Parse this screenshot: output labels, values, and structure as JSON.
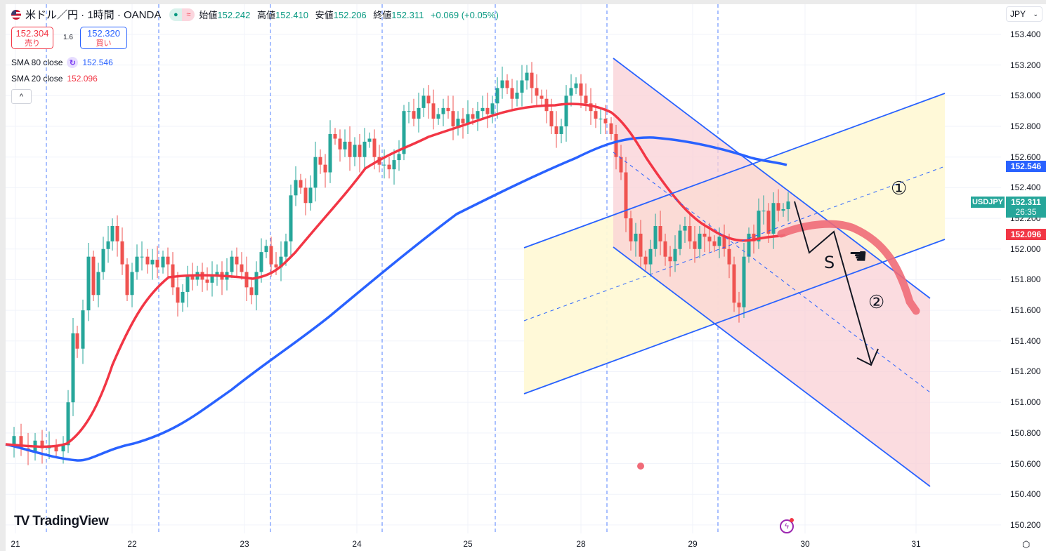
{
  "header": {
    "symbol_title": "米ドル／円 · 1時間 · OANDA",
    "status_icons": [
      "market-open-dot-icon",
      "delayed-wave-icon"
    ],
    "ohlc": {
      "open_label": "始値",
      "open": "152.242",
      "high_label": "高値",
      "high": "152.410",
      "low_label": "安値",
      "low": "152.206",
      "close_label": "終値",
      "close": "152.311",
      "change": "+0.069 (+0.05%)"
    }
  },
  "trade": {
    "sell_price": "152.304",
    "sell_label": "売り",
    "spread": "1.6",
    "buy_price": "152.320",
    "buy_label": "買い"
  },
  "indicators": [
    {
      "name": "SMA 80 close",
      "value": "152.546",
      "color": "#2962ff"
    },
    {
      "name": "SMA 20 close",
      "value": "152.096",
      "color": "#f23645"
    }
  ],
  "collapse_icon": "^",
  "currency": "JPY",
  "price_axis": [
    "153.400",
    "153.200",
    "153.000",
    "152.800",
    "152.600",
    "152.400",
    "152.200",
    "152.000",
    "151.800",
    "151.600",
    "151.400",
    "151.200",
    "151.000",
    "150.800",
    "150.600",
    "150.400",
    "150.200"
  ],
  "price_tags": {
    "sma80": "152.546",
    "last": "152.311",
    "countdown": "26:35",
    "sma20": "152.096",
    "symbol": "USDJPY"
  },
  "time_axis": [
    "21",
    "22",
    "23",
    "24",
    "25",
    "28",
    "29",
    "30",
    "31"
  ],
  "branding": "TradingView",
  "annotations": {
    "circle1": "①",
    "circle2": "②",
    "s_label": "S",
    "hand": "☛"
  },
  "colors": {
    "up": "#26a69a",
    "down": "#ef5350",
    "sma80": "#2962ff",
    "sma20": "#f23645",
    "channel_line": "#2962ff",
    "up_channel_fill": "#fff9d6",
    "down_channel_fill": "#f9d0d6"
  },
  "chart_data": {
    "type": "candlestick",
    "title": "米ドル／円 · 1時間 · OANDA",
    "xlabel": "",
    "ylabel": "JPY",
    "ylim": [
      150.15,
      153.45
    ],
    "x_ticks": [
      "21",
      "22",
      "23",
      "24",
      "25",
      "28",
      "29",
      "30",
      "31"
    ],
    "series": [
      {
        "name": "USDJPY (approx. hourly close)",
        "type": "candles",
        "points": [
          [
            21.0,
            150.72
          ],
          [
            21.3,
            150.7
          ],
          [
            21.6,
            150.85
          ],
          [
            21.8,
            151.55
          ],
          [
            22.0,
            152.05
          ],
          [
            22.2,
            151.9
          ],
          [
            22.5,
            151.75
          ],
          [
            22.8,
            151.82
          ],
          [
            23.0,
            151.75
          ],
          [
            23.2,
            151.95
          ],
          [
            23.4,
            152.1
          ],
          [
            23.6,
            152.55
          ],
          [
            23.8,
            152.7
          ],
          [
            24.0,
            152.6
          ],
          [
            24.2,
            152.55
          ],
          [
            24.5,
            152.9
          ],
          [
            24.8,
            152.95
          ],
          [
            25.0,
            152.9
          ],
          [
            25.3,
            153.1
          ],
          [
            25.6,
            153.05
          ],
          [
            25.9,
            153.15
          ],
          [
            28.0,
            152.8
          ],
          [
            28.2,
            152.15
          ],
          [
            28.5,
            151.9
          ],
          [
            28.8,
            152.1
          ],
          [
            29.0,
            152.0
          ],
          [
            29.3,
            151.7
          ],
          [
            29.6,
            152.3
          ],
          [
            29.8,
            152.31
          ]
        ]
      },
      {
        "name": "SMA 80 close",
        "last": 152.546
      },
      {
        "name": "SMA 20 close",
        "last": 152.096
      }
    ],
    "drawings": [
      "ascending parallel channel (yellow)",
      "descending parallel channel (pink)",
      "zigzag arrow down labeled S",
      "projected curve arrow",
      "labels ① ②"
    ]
  }
}
